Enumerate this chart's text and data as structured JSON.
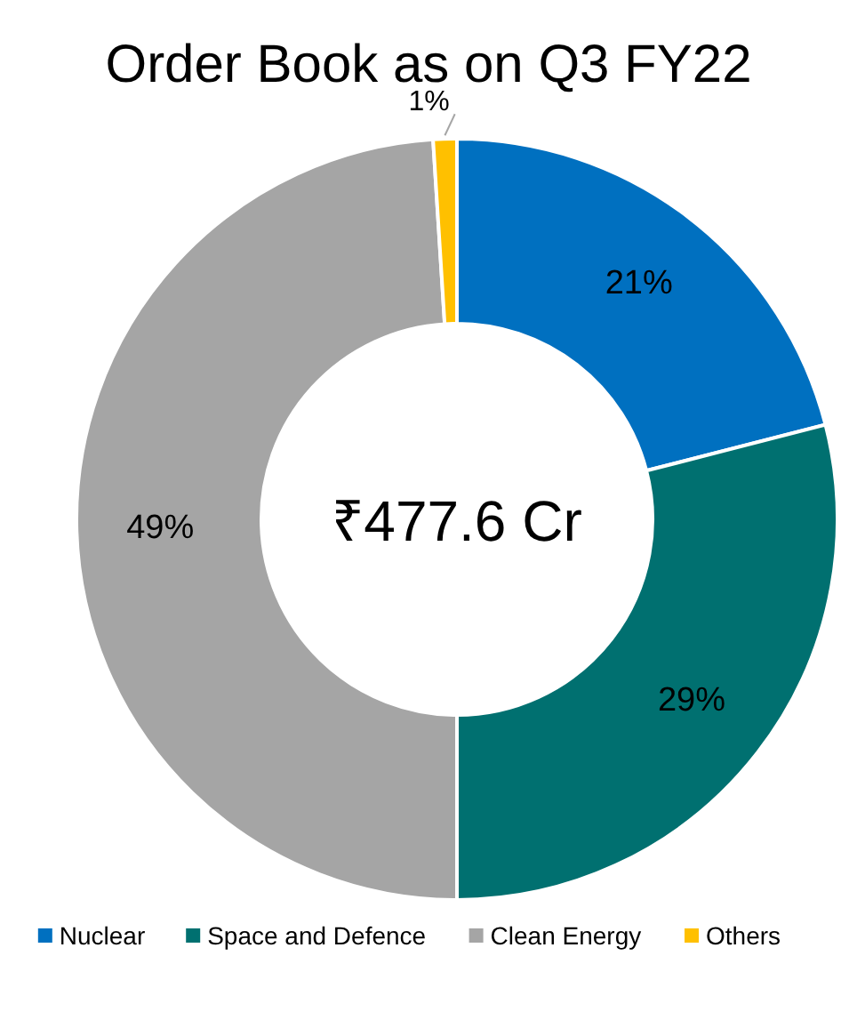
{
  "chart_data": {
    "type": "donut",
    "title": "Order Book as on Q3 FY22",
    "categories": [
      "Nuclear",
      "Space and Defence",
      "Clean Energy",
      "Others"
    ],
    "values": [
      21,
      29,
      49,
      1
    ],
    "colors": [
      "#0070c0",
      "#007070",
      "#a5a5a5",
      "#ffc000"
    ],
    "annotations": [
      "₹477.6 Cr"
    ],
    "value_labels": [
      "21%",
      "29%",
      "49%",
      "1%"
    ],
    "legend": "bottom"
  }
}
